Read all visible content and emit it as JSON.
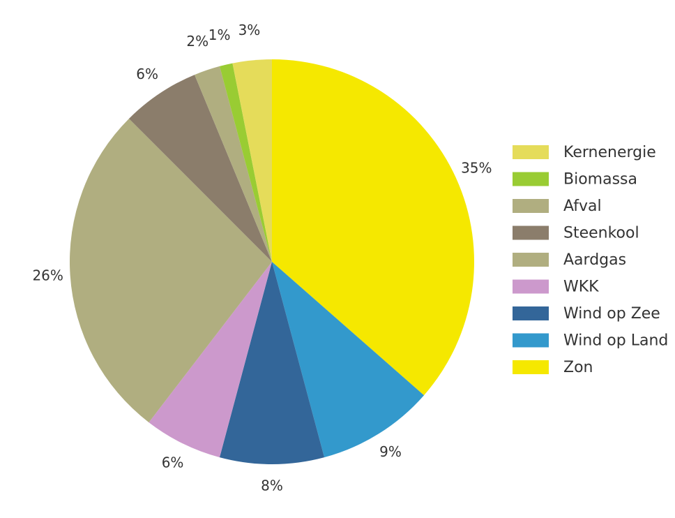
{
  "chart_data": {
    "type": "pie",
    "categories": [
      "Zon",
      "Wind op Land",
      "Wind op Zee",
      "WKK",
      "Aardgas",
      "Steenkool",
      "Afval",
      "Biomassa",
      "Kernenergie"
    ],
    "values": [
      35,
      9,
      8,
      6,
      26,
      6,
      2,
      1,
      3
    ],
    "value_labels": [
      "35%",
      "9%",
      "8%",
      "6%",
      "26%",
      "6%",
      "2%",
      "1%",
      "3%"
    ],
    "colors": [
      "#f5e800",
      "#3399cc",
      "#336699",
      "#cc99cc",
      "#b0ae80",
      "#8b7d6b",
      "#b0ae80",
      "#99cc33",
      "#e5dc5a"
    ],
    "legend": "right"
  }
}
